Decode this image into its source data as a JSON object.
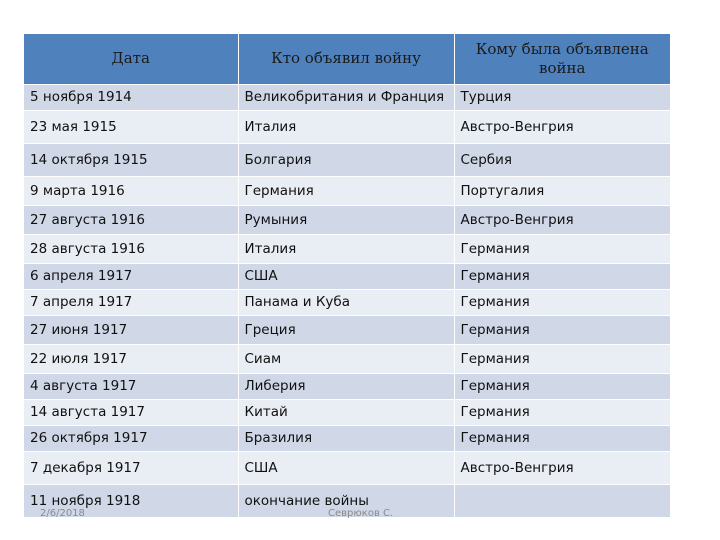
{
  "table": {
    "headers": [
      "Дата",
      "Кто объявил войну",
      "Кому была объявлена война"
    ],
    "rows": [
      [
        "5 ноября 1914",
        "Великобритания и Франция",
        "Турция"
      ],
      [
        "23 мая 1915",
        "Италия",
        "Австро-Венгрия"
      ],
      [
        "14 октября 1915",
        "Болгария",
        "Сербия"
      ],
      [
        "9 марта 1916",
        "Германия",
        "Португалия"
      ],
      [
        "27 августа 1916",
        "Румыния",
        "Австро-Венгрия"
      ],
      [
        "28 августа 1916",
        "Италия",
        "Германия"
      ],
      [
        "6 апреля 1917",
        "США",
        "Германия"
      ],
      [
        "7 апреля 1917",
        "Панама и Куба",
        "Германия"
      ],
      [
        "27 июня 1917",
        "Греция",
        "Германия"
      ],
      [
        "22 июля 1917",
        "Сиам",
        "Германия"
      ],
      [
        "4 августа 1917",
        "Либерия",
        "Германия"
      ],
      [
        "14 августа 1917",
        "Китай",
        "Германия"
      ],
      [
        "26 октября 1917",
        "Бразилия",
        "Германия"
      ],
      [
        "7 декабря 1917",
        "США",
        "Австро-Венгрия"
      ],
      [
        "11 ноября 1918",
        "окончание войны",
        ""
      ]
    ]
  },
  "footer": {
    "date": "2/6/2018",
    "author": "Севрюков С."
  },
  "colors": {
    "header_bg": "#4f81bd",
    "row_odd": "#d0d8e8",
    "row_even": "#e9edf4"
  }
}
